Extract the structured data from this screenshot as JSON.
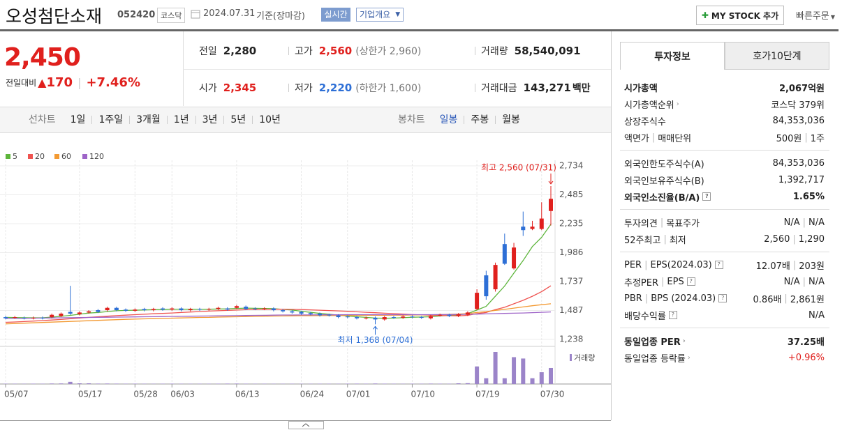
{
  "header": {
    "name": "오성첨단소재",
    "code": "052420",
    "market": "코스닥",
    "date": "2024.07.31",
    "basis": "기준(장마감)",
    "badge": "실시간",
    "menu": "기업개요",
    "my_stock": "MY STOCK 추가",
    "quick_order": "빠른주문"
  },
  "price": {
    "current": "2,450",
    "change_label": "전일대비",
    "change": "170",
    "rate": "+7.46%"
  },
  "summary": [
    {
      "label": "전일",
      "value": "2,280"
    },
    {
      "label": "고가",
      "value": "2,560",
      "extra": "(상한가 2,960)"
    },
    {
      "label": "거래량",
      "value": "58,540,091"
    },
    {
      "label": "시가",
      "value": "2,345"
    },
    {
      "label": "저가",
      "value": "2,220",
      "extra": "(하한가 1,600)"
    },
    {
      "label": "거래대금",
      "value": "143,271",
      "unit": "백만"
    }
  ],
  "chart_tabs": {
    "line_label": "선차트",
    "periods": [
      "1일",
      "1주일",
      "3개월",
      "1년",
      "3년",
      "5년",
      "10년"
    ],
    "candle_label": "봉차트",
    "candles": [
      "일봉",
      "주봉",
      "월봉"
    ]
  },
  "right_panel": {
    "tabs": [
      "투자정보",
      "호가10단계"
    ],
    "sections": [
      {
        "rows": [
          {
            "label": [
              "시가총액"
            ],
            "value": [
              "2,067억원"
            ]
          },
          {
            "label": [
              "시가총액순위"
            ],
            "value": [
              "코스닥 379위"
            ]
          },
          {
            "label": [
              "상장주식수"
            ],
            "value": [
              "84,353,036"
            ]
          },
          {
            "label": [
              "액면가",
              "매매단위"
            ],
            "value": [
              "500원",
              "1주"
            ]
          }
        ]
      },
      {
        "rows": [
          {
            "label": [
              "외국인한도주식수(A)"
            ],
            "value": [
              "84,353,036"
            ]
          },
          {
            "label": [
              "외국인보유주식수(B)"
            ],
            "value": [
              "1,392,717"
            ]
          },
          {
            "label": [
              "외국인소진율(B/A)"
            ],
            "value": [
              "1.65%"
            ]
          }
        ]
      },
      {
        "rows": [
          {
            "label": [
              "투자의견",
              "목표주가"
            ],
            "value": [
              "N/A",
              "N/A"
            ]
          },
          {
            "label": [
              "52주최고",
              "최저"
            ],
            "value": [
              "2,560",
              "1,290"
            ]
          }
        ]
      },
      {
        "rows": [
          {
            "label": [
              "PER",
              "EPS(2024.03)"
            ],
            "value": [
              "12.07배",
              "203원"
            ]
          },
          {
            "label": [
              "추정PER",
              "EPS"
            ],
            "value": [
              "N/A",
              "N/A"
            ]
          },
          {
            "label": [
              "PBR",
              "BPS (2024.03)"
            ],
            "value": [
              "0.86배",
              "2,861원"
            ]
          },
          {
            "label": [
              "배당수익률"
            ],
            "value": [
              "N/A"
            ]
          }
        ]
      },
      {
        "rows": [
          {
            "label": [
              "동일업종 PER"
            ],
            "value": [
              "37.25배"
            ]
          },
          {
            "label": [
              "동일업종 등락률"
            ],
            "value": [
              "+0.96%"
            ]
          }
        ]
      }
    ]
  },
  "chart_data": {
    "type": "candlestick",
    "categories": [
      "05/07",
      null,
      null,
      null,
      null,
      null,
      null,
      null,
      "05/17",
      null,
      null,
      null,
      null,
      null,
      "05/28",
      null,
      null,
      null,
      "06/03",
      null,
      null,
      null,
      null,
      null,
      null,
      "06/13",
      null,
      null,
      null,
      null,
      null,
      null,
      "06/24",
      null,
      null,
      null,
      null,
      "07/01",
      null,
      null,
      null,
      null,
      null,
      null,
      "07/10",
      null,
      null,
      null,
      null,
      null,
      null,
      "07/19",
      null,
      null,
      null,
      null,
      null,
      null,
      "07/30",
      null
    ],
    "open": [
      1430,
      1425,
      1425,
      1420,
      1425,
      1430,
      1440,
      1475,
      1455,
      1470,
      1490,
      1490,
      1510,
      1495,
      1485,
      1500,
      1490,
      1505,
      1495,
      1505,
      1490,
      1500,
      1495,
      1500,
      1505,
      1510,
      1520,
      1505,
      1500,
      1505,
      1490,
      1480,
      1475,
      1465,
      1460,
      1450,
      1445,
      1435,
      1430,
      1420,
      1425,
      1410,
      1430,
      1425,
      1435,
      1430,
      1420,
      1445,
      1450,
      1440,
      1450,
      1500,
      1790,
      1670,
      2060,
      1850,
      2210,
      2190,
      2190,
      2345
    ],
    "high": [
      1440,
      1440,
      1435,
      1435,
      1435,
      1460,
      1470,
      1700,
      1480,
      1490,
      1500,
      1520,
      1520,
      1505,
      1505,
      1510,
      1510,
      1515,
      1515,
      1515,
      1510,
      1510,
      1510,
      1520,
      1515,
      1535,
      1530,
      1515,
      1515,
      1515,
      1500,
      1490,
      1485,
      1475,
      1470,
      1460,
      1455,
      1445,
      1440,
      1435,
      1435,
      1440,
      1440,
      1445,
      1445,
      1440,
      1450,
      1460,
      1460,
      1465,
      1480,
      1670,
      1830,
      1900,
      2150,
      2070,
      2340,
      2260,
      2420,
      2560
    ],
    "low": [
      1410,
      1415,
      1410,
      1410,
      1410,
      1420,
      1430,
      1450,
      1445,
      1460,
      1465,
      1480,
      1480,
      1475,
      1475,
      1480,
      1480,
      1485,
      1485,
      1480,
      1480,
      1485,
      1485,
      1490,
      1485,
      1500,
      1490,
      1490,
      1490,
      1480,
      1470,
      1460,
      1450,
      1445,
      1435,
      1435,
      1420,
      1420,
      1410,
      1410,
      1368,
      1400,
      1415,
      1415,
      1420,
      1415,
      1410,
      1435,
      1430,
      1430,
      1440,
      1490,
      1580,
      1650,
      1880,
      1840,
      2130,
      2180,
      2180,
      2220
    ],
    "close": [
      1420,
      1430,
      1420,
      1425,
      1420,
      1450,
      1460,
      1460,
      1470,
      1480,
      1475,
      1510,
      1490,
      1485,
      1495,
      1490,
      1500,
      1495,
      1505,
      1490,
      1500,
      1495,
      1500,
      1510,
      1495,
      1525,
      1500,
      1500,
      1505,
      1490,
      1480,
      1470,
      1460,
      1455,
      1445,
      1445,
      1430,
      1430,
      1420,
      1425,
      1410,
      1430,
      1425,
      1435,
      1430,
      1425,
      1440,
      1450,
      1440,
      1455,
      1470,
      1640,
      1610,
      1880,
      1890,
      2030,
      2180,
      2210,
      2280,
      2450
    ],
    "up_color": "#e0201d",
    "down_color": "#2d6fd6",
    "series": [
      {
        "name": "5",
        "color": "#5db53b",
        "values": [
          1428,
          1426,
          1425,
          1424,
          1424,
          1430,
          1437,
          1445,
          1455,
          1465,
          1470,
          1478,
          1485,
          1488,
          1490,
          1492,
          1494,
          1495,
          1498,
          1499,
          1498,
          1497,
          1498,
          1500,
          1501,
          1505,
          1508,
          1506,
          1505,
          1503,
          1497,
          1491,
          1481,
          1471,
          1462,
          1455,
          1447,
          1440,
          1433,
          1428,
          1422,
          1420,
          1422,
          1425,
          1429,
          1431,
          1433,
          1440,
          1445,
          1450,
          1460,
          1491,
          1523,
          1611,
          1698,
          1810,
          1918,
          2038,
          2118,
          2230
        ]
      },
      {
        "name": "20",
        "color": "#ef5350",
        "values": [
          1385,
          1388,
          1392,
          1396,
          1400,
          1405,
          1410,
          1416,
          1422,
          1428,
          1433,
          1438,
          1443,
          1447,
          1451,
          1455,
          1459,
          1462,
          1466,
          1470,
          1474,
          1478,
          1482,
          1485,
          1488,
          1491,
          1494,
          1496,
          1497,
          1498,
          1498,
          1497,
          1495,
          1493,
          1490,
          1487,
          1484,
          1480,
          1476,
          1472,
          1468,
          1464,
          1460,
          1456,
          1452,
          1449,
          1446,
          1444,
          1442,
          1441,
          1445,
          1460,
          1470,
          1495,
          1515,
          1545,
          1575,
          1610,
          1650,
          1700
        ]
      },
      {
        "name": "60",
        "color": "#f39a33",
        "values": [
          1372,
          1375,
          1378,
          1381,
          1384,
          1387,
          1390,
          1393,
          1396,
          1399,
          1402,
          1405,
          1408,
          1411,
          1413,
          1415,
          1417,
          1419,
          1421,
          1423,
          1425,
          1427,
          1428,
          1430,
          1432,
          1433,
          1435,
          1436,
          1438,
          1439,
          1440,
          1441,
          1442,
          1442,
          1443,
          1444,
          1444,
          1445,
          1445,
          1446,
          1446,
          1446,
          1447,
          1447,
          1448,
          1449,
          1450,
          1452,
          1454,
          1456,
          1460,
          1470,
          1478,
          1488,
          1497,
          1508,
          1518,
          1528,
          1537,
          1545
        ]
      },
      {
        "name": "120",
        "color": "#9e64c8",
        "values": [
          1418,
          1419,
          1420,
          1421,
          1422,
          1423,
          1424,
          1425,
          1426,
          1427,
          1428,
          1429,
          1430,
          1431,
          1432,
          1433,
          1434,
          1435,
          1436,
          1437,
          1438,
          1439,
          1440,
          1441,
          1442,
          1443,
          1444,
          1445,
          1446,
          1447,
          1448,
          1448,
          1449,
          1449,
          1450,
          1450,
          1450,
          1451,
          1451,
          1451,
          1451,
          1451,
          1451,
          1451,
          1451,
          1451,
          1451,
          1452,
          1452,
          1453,
          1454,
          1456,
          1458,
          1460,
          1462,
          1464,
          1466,
          1469,
          1472,
          1475
        ]
      }
    ],
    "volume": {
      "name": "거래량",
      "color": "#9b84c9",
      "values": [
        1200000,
        1100000,
        1000000,
        1300000,
        1200000,
        1800000,
        2000000,
        8000000,
        2500000,
        2500000,
        1500000,
        1700000,
        1400000,
        1200000,
        1300000,
        1100000,
        1000000,
        1200000,
        1300000,
        1100000,
        1000000,
        1200000,
        1100000,
        1300000,
        1500000,
        1600000,
        1200000,
        1000000,
        1100000,
        900000,
        1000000,
        1100000,
        900000,
        1000000,
        1200000,
        1100000,
        1000000,
        1300000,
        1400000,
        1200000,
        1800000,
        1300000,
        1100000,
        1000000,
        1200000,
        1100000,
        1500000,
        1300000,
        1200000,
        2500000,
        3000000,
        64000000,
        21000000,
        117000000,
        21000000,
        98000000,
        93000000,
        21000000,
        43000000,
        58540091
      ]
    },
    "ylim": [
      1238,
      2734
    ],
    "yticks": [
      {
        "value": 1238,
        "label": "1,238"
      },
      {
        "value": 1487,
        "label": "1,487"
      },
      {
        "value": 1737,
        "label": "1,737"
      },
      {
        "value": 1986,
        "label": "1,986"
      },
      {
        "value": 2235,
        "label": "2,235"
      },
      {
        "value": 2485,
        "label": "2,485"
      },
      {
        "value": 2734,
        "label": "2,734"
      }
    ],
    "grid": true,
    "annotations": [
      "최고 2,560 (07/31)",
      "최저 1,368 (07/04)"
    ]
  }
}
